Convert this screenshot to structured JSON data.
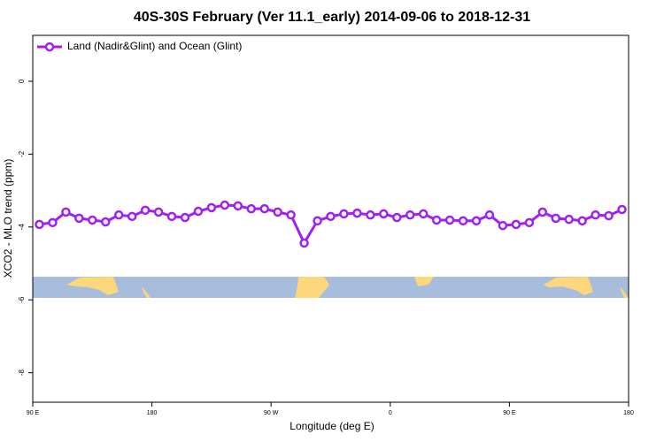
{
  "chart_data": {
    "type": "line",
    "title": "40S-30S February (Ver 11.1_early)   2014-09-06 to 2018-12-31",
    "x_label": "Longitude (deg E)",
    "y_label": "XCO2 - MLO trend (ppm)",
    "xlim": [
      90,
      540
    ],
    "ylim": [
      -8.81,
      1.26
    ],
    "xticks": [
      {
        "value": 90,
        "label": "90 E"
      },
      {
        "value": 180,
        "label": "180"
      },
      {
        "value": 270,
        "label": "90 W"
      },
      {
        "value": 360,
        "label": "0"
      },
      {
        "value": 450,
        "label": "90 E"
      },
      {
        "value": 540,
        "label": "180"
      }
    ],
    "yticks": [
      0,
      -2,
      -4,
      -6,
      -8
    ],
    "legend": "top-left",
    "series": [
      {
        "name": "Land (Nadir&Glint) and Ocean (Glint)",
        "color": "#a020f0",
        "x": [
          95,
          105,
          115,
          125,
          135,
          145,
          155,
          165,
          175,
          185,
          195,
          205,
          215,
          225,
          235,
          245,
          255,
          265,
          275,
          285,
          295,
          305,
          315,
          325,
          335,
          345,
          355,
          365,
          375,
          385,
          395,
          405,
          415,
          425,
          435,
          445,
          455,
          465,
          475,
          485,
          495,
          505,
          515,
          525,
          535
        ],
        "values": [
          -3.93,
          -3.88,
          -3.59,
          -3.76,
          -3.81,
          -3.86,
          -3.67,
          -3.71,
          -3.54,
          -3.59,
          -3.71,
          -3.74,
          -3.57,
          -3.47,
          -3.4,
          -3.42,
          -3.5,
          -3.5,
          -3.59,
          -3.67,
          -4.44,
          -3.83,
          -3.71,
          -3.64,
          -3.62,
          -3.67,
          -3.64,
          -3.74,
          -3.67,
          -3.64,
          -3.81,
          -3.81,
          -3.83,
          -3.83,
          -3.67,
          -3.96,
          -3.93,
          -3.88,
          -3.59,
          -3.76,
          -3.79,
          -3.83,
          -3.67,
          -3.69,
          -3.52
        ]
      }
    ]
  }
}
